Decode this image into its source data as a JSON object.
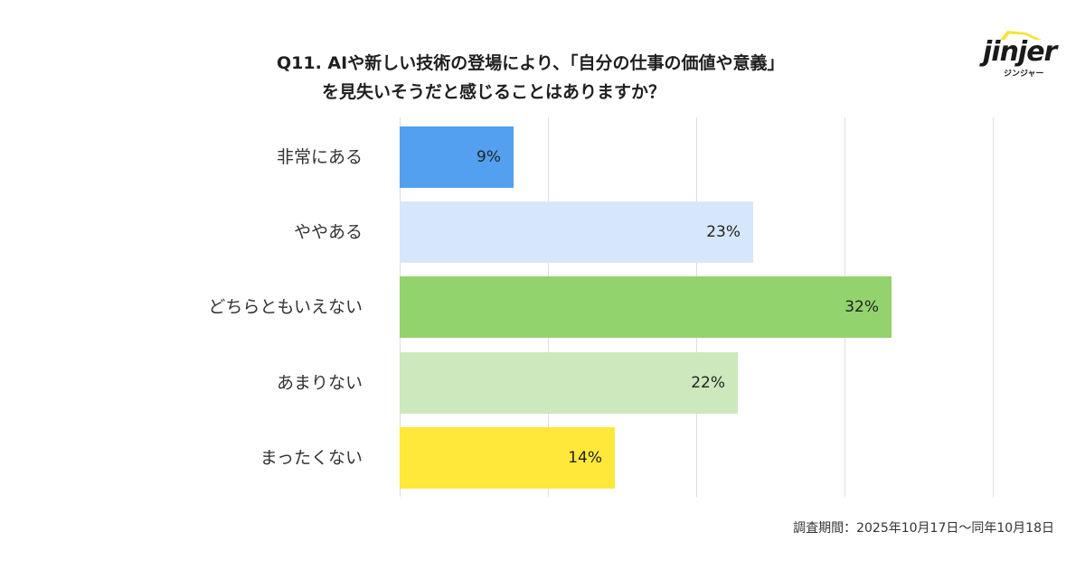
{
  "header": {
    "title_line1": "Q11. AIや新しい技術の登場により、「自分の仕事の価値や意義」",
    "title_line2": "を見失いそうだと感じることはありますか？"
  },
  "logo": {
    "wordmark": "jinjer",
    "kana": "ジンジャー",
    "accent_color": "#f7e433"
  },
  "footnote": "調査期間：2025年10月17日〜同年10月18日",
  "chart_data": {
    "type": "bar",
    "orientation": "horizontal",
    "title": "Q11. AIや新しい技術の登場により、「自分の仕事の価値や意義」を見失いそうだと感じることはありますか？",
    "xlabel": "",
    "ylabel": "",
    "categories": [
      "非常にある",
      "ややある",
      "どちらともいえない",
      "あまりない",
      "まったくない"
    ],
    "values": [
      9,
      23,
      32,
      22,
      14
    ],
    "labels": [
      "9%",
      "23%",
      "32%",
      "22%",
      "14%"
    ],
    "colors": [
      "#539ff0",
      "#d7e7fb",
      "#92d36e",
      "#cde8bd",
      "#ffe83a"
    ],
    "unit": "%",
    "grid": true,
    "gridlines_count": 5,
    "legend": false
  }
}
